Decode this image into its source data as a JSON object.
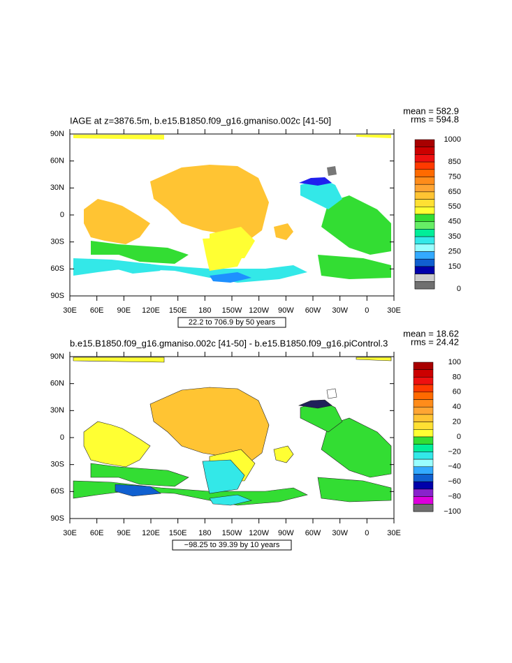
{
  "panels": [
    {
      "title": "IAGE at z=3876.5m, b.e15.B1850.f09_g16.gmaniso.002c [41-50]",
      "mean": "mean = 582.9",
      "rms": "rms = 594.8",
      "lat_labels": [
        "90N",
        "60N",
        "30N",
        "0",
        "30S",
        "60S",
        "90S"
      ],
      "lon_labels": [
        "30E",
        "60E",
        "90E",
        "120E",
        "150E",
        "180",
        "150W",
        "120W",
        "90W",
        "60W",
        "30W",
        "0",
        "30E"
      ],
      "range_label": "22.2 to 706.9 by 50 years",
      "colorbar_labels": [
        "1000",
        "850",
        "750",
        "650",
        "550",
        "450",
        "350",
        "250",
        "150",
        "0"
      ]
    },
    {
      "title": "b.e15.B1850.f09_g16.gmaniso.002c [41-50] - b.e15.B1850.f09_g16.piControl.3",
      "mean": "mean = 18.62",
      "rms": "rms = 24.42",
      "lat_labels": [
        "90N",
        "60N",
        "30N",
        "0",
        "30S",
        "60S",
        "90S"
      ],
      "lon_labels": [
        "30E",
        "60E",
        "90E",
        "120E",
        "150E",
        "180",
        "150W",
        "120W",
        "90W",
        "60W",
        "30W",
        "0",
        "30E"
      ],
      "range_label": "−98.25 to 39.39 by 10 years",
      "colorbar_labels": [
        "100",
        "80",
        "60",
        "40",
        "20",
        "0",
        "−20",
        "−40",
        "−60",
        "−80",
        "−100"
      ]
    }
  ]
}
